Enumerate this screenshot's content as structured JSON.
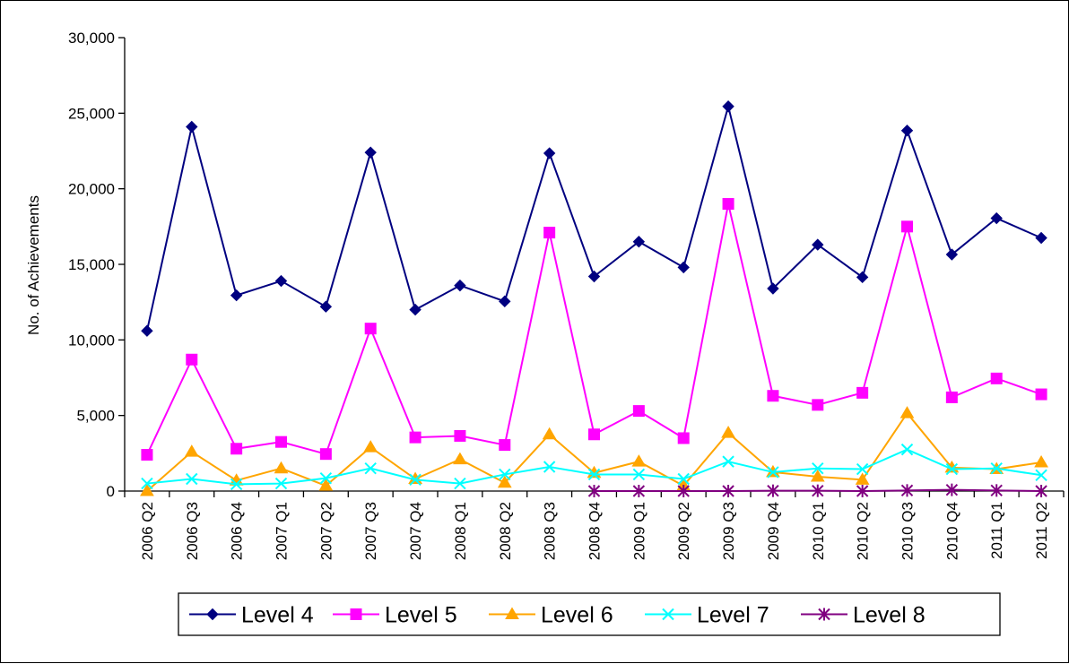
{
  "chart_data": {
    "type": "line",
    "title": "",
    "xlabel": "",
    "ylabel": "No. of Achievements",
    "ylim": [
      0,
      30000
    ],
    "yticks": [
      "0",
      "5,000",
      "10,000",
      "15,000",
      "20,000",
      "25,000",
      "30,000"
    ],
    "ytick_values": [
      0,
      5000,
      10000,
      15000,
      20000,
      25000,
      30000
    ],
    "grid": false,
    "legend_position": "bottom",
    "categories": [
      "2006 Q2",
      "2006 Q3",
      "2006 Q4",
      "2007 Q1",
      "2007 Q2",
      "2007 Q3",
      "2007 Q4",
      "2008 Q1",
      "2008 Q2",
      "2008 Q3",
      "2008 Q4",
      "2009 Q1",
      "2009 Q2",
      "2009 Q3",
      "2009 Q4",
      "2010 Q1",
      "2010 Q2",
      "2010 Q3",
      "2010 Q4",
      "2011 Q1",
      "2011 Q2"
    ],
    "series": [
      {
        "name": "Level 4",
        "color": "#000080",
        "marker": "diamond",
        "values": [
          10600,
          24100,
          12950,
          13900,
          12200,
          22400,
          12000,
          13600,
          12550,
          22350,
          14200,
          16500,
          14800,
          25450,
          13400,
          16300,
          14150,
          23850,
          15650,
          18050,
          16750
        ]
      },
      {
        "name": "Level 5",
        "color": "#FF00FF",
        "marker": "square",
        "values": [
          2400,
          8700,
          2800,
          3250,
          2450,
          10750,
          3550,
          3650,
          3050,
          17100,
          3750,
          5300,
          3500,
          19000,
          6300,
          5700,
          6500,
          17500,
          6200,
          7450,
          6400
        ]
      },
      {
        "name": "Level 6",
        "color": "#FFA500",
        "marker": "triangle",
        "values": [
          0,
          2600,
          700,
          1500,
          350,
          2900,
          800,
          2100,
          550,
          3750,
          1200,
          1950,
          350,
          3850,
          1250,
          950,
          750,
          5150,
          1550,
          1450,
          1900
        ]
      },
      {
        "name": "Level 7",
        "color": "#00FFFF",
        "marker": "x",
        "values": [
          500,
          800,
          450,
          500,
          850,
          1500,
          750,
          500,
          1100,
          1600,
          1100,
          1100,
          800,
          1950,
          1250,
          1500,
          1450,
          2750,
          1450,
          1500,
          1050
        ]
      },
      {
        "name": "Level 8",
        "color": "#800080",
        "marker": "star",
        "values": [
          null,
          null,
          null,
          null,
          null,
          null,
          null,
          null,
          null,
          null,
          0,
          0,
          0,
          0,
          20,
          20,
          0,
          40,
          80,
          40,
          0
        ]
      }
    ]
  }
}
